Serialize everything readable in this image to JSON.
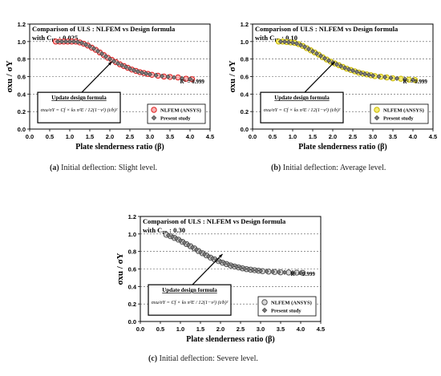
{
  "chart_data": [
    {
      "type": "scatter",
      "panel_label": "(a)",
      "caption": "Initial deflection: Slight level.",
      "title": "Comparison of ULS : NLFEM vs Design formula",
      "title_line2": "with C",
      "title_sub": "ID",
      "title_value": " : 0.025",
      "xlabel": "Plate slenderness ratio (β)",
      "ylabel": "σxu / σY",
      "xlim": [
        0.0,
        4.5
      ],
      "ylim": [
        0.0,
        1.2
      ],
      "xticks": [
        "0.0",
        "0.5",
        "1.0",
        "1.5",
        "2.0",
        "2.5",
        "3.0",
        "3.5",
        "4.0",
        "4.5"
      ],
      "yticks": [
        "0.0",
        "0.2",
        "0.4",
        "0.6",
        "0.8",
        "1.0",
        "1.2"
      ],
      "grid": "horizontal dashed",
      "legend_position": "bottom-right",
      "r2_label": "R² = 0.999",
      "annotation_title": "Update design formula",
      "annotation_formula": "σxu/σY = Cf × ks π²E / 12(1−ν²) (t/b)²",
      "series": [
        {
          "name": "NLFEM (ANSYS)",
          "color": "#e02020",
          "fill": "#f6b3b3",
          "x": [
            0.65,
            0.75,
            0.85,
            0.95,
            1.05,
            1.15,
            1.25,
            1.35,
            1.45,
            1.55,
            1.65,
            1.75,
            1.85,
            1.95,
            2.05,
            2.15,
            2.25,
            2.35,
            2.45,
            2.55,
            2.65,
            2.75,
            2.85,
            2.95,
            3.05,
            3.2,
            3.35,
            3.5,
            3.7,
            3.9,
            4.05
          ],
          "y": [
            1.0,
            1.0,
            1.0,
            1.0,
            1.0,
            1.0,
            0.99,
            0.975,
            0.955,
            0.93,
            0.905,
            0.875,
            0.845,
            0.815,
            0.79,
            0.765,
            0.74,
            0.72,
            0.7,
            0.68,
            0.665,
            0.65,
            0.64,
            0.63,
            0.62,
            0.61,
            0.6,
            0.595,
            0.59,
            0.575,
            0.57
          ]
        },
        {
          "name": "Present study",
          "color": "#444444",
          "fill": "#7a7a7a",
          "x": [
            0.7,
            0.8,
            0.9,
            1.0,
            1.1,
            1.2,
            1.3,
            1.4,
            1.5,
            1.6,
            1.7,
            1.8,
            1.9,
            2.0,
            2.1,
            2.2,
            2.3,
            2.4,
            2.5,
            2.6,
            2.7,
            2.8,
            2.9,
            3.0,
            3.15,
            3.3,
            3.45,
            3.6,
            3.8,
            4.0
          ],
          "y": [
            1.0,
            1.0,
            1.0,
            1.0,
            1.0,
            0.995,
            0.985,
            0.965,
            0.945,
            0.92,
            0.89,
            0.86,
            0.83,
            0.8,
            0.775,
            0.75,
            0.73,
            0.71,
            0.69,
            0.672,
            0.657,
            0.645,
            0.635,
            0.625,
            0.615,
            0.605,
            0.598,
            0.59,
            0.578,
            0.572
          ]
        }
      ]
    },
    {
      "type": "scatter",
      "panel_label": "(b)",
      "caption": "Initial deflection: Average level.",
      "title": "Comparison of ULS : NLFEM vs Design formula",
      "title_line2": "with C",
      "title_sub": "ID",
      "title_value": " : 0.10",
      "xlabel": "Plate slenderness ratio (β)",
      "ylabel": "σxu / σY",
      "xlim": [
        0.0,
        4.5
      ],
      "ylim": [
        0.0,
        1.2
      ],
      "xticks": [
        "0.0",
        "0.5",
        "1.0",
        "1.5",
        "2.0",
        "2.5",
        "3.0",
        "3.5",
        "4.0",
        "4.5"
      ],
      "yticks": [
        "0.0",
        "0.2",
        "0.4",
        "0.6",
        "0.8",
        "1.0",
        "1.2"
      ],
      "grid": "horizontal dashed",
      "legend_position": "bottom-right",
      "r2_label": "R² = 0.999",
      "annotation_title": "Update design formula",
      "annotation_formula": "σxu/σY = Cf × ks π²E / 12(1−ν²) (t/b)²",
      "series": [
        {
          "name": "NLFEM (ANSYS)",
          "color": "#c9b800",
          "fill": "#f5ec70",
          "x": [
            0.65,
            0.75,
            0.85,
            0.95,
            1.05,
            1.15,
            1.25,
            1.35,
            1.45,
            1.55,
            1.65,
            1.75,
            1.85,
            1.95,
            2.05,
            2.15,
            2.25,
            2.35,
            2.45,
            2.55,
            2.65,
            2.75,
            2.85,
            2.95,
            3.05,
            3.2,
            3.35,
            3.5,
            3.7,
            3.9,
            4.05
          ],
          "y": [
            1.0,
            1.0,
            0.995,
            0.99,
            0.985,
            0.97,
            0.95,
            0.925,
            0.9,
            0.875,
            0.85,
            0.82,
            0.795,
            0.77,
            0.75,
            0.73,
            0.71,
            0.69,
            0.675,
            0.66,
            0.645,
            0.635,
            0.625,
            0.615,
            0.605,
            0.598,
            0.59,
            0.58,
            0.575,
            0.565,
            0.56
          ]
        },
        {
          "name": "Present study",
          "color": "#444444",
          "fill": "#7a7a7a",
          "x": [
            0.7,
            0.8,
            0.9,
            1.0,
            1.1,
            1.2,
            1.3,
            1.4,
            1.5,
            1.6,
            1.7,
            1.8,
            1.9,
            2.0,
            2.1,
            2.2,
            2.3,
            2.4,
            2.5,
            2.6,
            2.7,
            2.8,
            2.9,
            3.0,
            3.15,
            3.3,
            3.45,
            3.6,
            3.8,
            4.0
          ],
          "y": [
            1.0,
            0.998,
            0.993,
            0.987,
            0.978,
            0.96,
            0.94,
            0.915,
            0.888,
            0.862,
            0.836,
            0.808,
            0.782,
            0.76,
            0.74,
            0.72,
            0.7,
            0.683,
            0.668,
            0.653,
            0.64,
            0.63,
            0.62,
            0.61,
            0.6,
            0.594,
            0.585,
            0.578,
            0.57,
            0.562
          ]
        }
      ]
    },
    {
      "type": "scatter",
      "panel_label": "(c)",
      "caption": "Initial deflection: Severe level.",
      "title": "Comparison of ULS : NLFEM vs Design formula",
      "title_line2": "with C",
      "title_sub": "ID",
      "title_value": " : 0.30",
      "xlabel": "Plate slenderness ratio (β)",
      "ylabel": "σxu / σY",
      "xlim": [
        0.0,
        4.5
      ],
      "ylim": [
        0.0,
        1.2
      ],
      "xticks": [
        "0.0",
        "0.5",
        "1.0",
        "1.5",
        "2.0",
        "2.5",
        "3.0",
        "3.5",
        "4.0",
        "4.5"
      ],
      "yticks": [
        "0.0",
        "0.2",
        "0.4",
        "0.6",
        "0.8",
        "1.0",
        "1.2"
      ],
      "grid": "horizontal dashed",
      "legend_position": "bottom-right",
      "r2_label": "R² = 0.999",
      "annotation_title": "Update design formula",
      "annotation_formula": "σxu/σY = Cf × ks π²E / 12(1−ν²) (t/b)²",
      "series": [
        {
          "name": "NLFEM (ANSYS)",
          "color": "#555555",
          "fill": "#d9d9d9",
          "x": [
            0.65,
            0.75,
            0.85,
            0.95,
            1.05,
            1.15,
            1.25,
            1.35,
            1.45,
            1.55,
            1.65,
            1.75,
            1.85,
            1.95,
            2.05,
            2.15,
            2.25,
            2.35,
            2.45,
            2.55,
            2.65,
            2.75,
            2.85,
            2.95,
            3.05,
            3.2,
            3.35,
            3.5,
            3.7,
            3.9,
            4.05
          ],
          "y": [
            0.99,
            0.975,
            0.955,
            0.935,
            0.91,
            0.885,
            0.86,
            0.835,
            0.805,
            0.78,
            0.755,
            0.73,
            0.71,
            0.69,
            0.672,
            0.656,
            0.64,
            0.628,
            0.618,
            0.607,
            0.598,
            0.592,
            0.586,
            0.58,
            0.575,
            0.57,
            0.566,
            0.562,
            0.56,
            0.558,
            0.556
          ]
        },
        {
          "name": "Present study",
          "color": "#444444",
          "fill": "#7a7a7a",
          "x": [
            0.7,
            0.8,
            0.9,
            1.0,
            1.1,
            1.2,
            1.3,
            1.4,
            1.5,
            1.6,
            1.7,
            1.8,
            1.9,
            2.0,
            2.1,
            2.2,
            2.3,
            2.4,
            2.5,
            2.6,
            2.7,
            2.8,
            2.9,
            3.0,
            3.15,
            3.3,
            3.45,
            3.6,
            3.8,
            4.0
          ],
          "y": [
            0.985,
            0.968,
            0.948,
            0.925,
            0.9,
            0.875,
            0.848,
            0.822,
            0.795,
            0.77,
            0.745,
            0.722,
            0.702,
            0.684,
            0.667,
            0.651,
            0.637,
            0.625,
            0.614,
            0.604,
            0.596,
            0.589,
            0.583,
            0.578,
            0.573,
            0.568,
            0.564,
            0.561,
            0.559,
            0.557
          ]
        }
      ]
    }
  ]
}
